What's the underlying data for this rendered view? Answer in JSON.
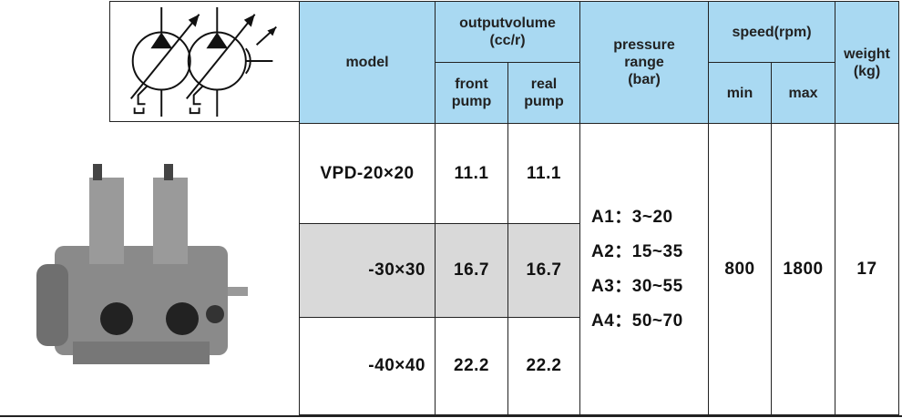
{
  "table": {
    "header": {
      "model": "model",
      "output_volume": [
        "outputvolume",
        "(cc/r)"
      ],
      "front_pump": [
        "front",
        "pump"
      ],
      "real_pump": [
        "real",
        "pump"
      ],
      "pressure_range": [
        "pressure",
        "range",
        "(bar)"
      ],
      "speed": "speed(rpm)",
      "min": "min",
      "max": "max",
      "weight": [
        "weight",
        "(kg)"
      ]
    },
    "rows": [
      {
        "model": "VPD-20×20",
        "front": "11.1",
        "real": "11.1"
      },
      {
        "model": "-30×30",
        "front": "16.7",
        "real": "16.7"
      },
      {
        "model": "-40×40",
        "front": "22.2",
        "real": "22.2"
      }
    ],
    "pressure": [
      "A1：3~20",
      "A2：15~35",
      "A3：30~55",
      "A4：50~70"
    ],
    "speed_min": "800",
    "speed_max": "1800",
    "weight": "17"
  }
}
